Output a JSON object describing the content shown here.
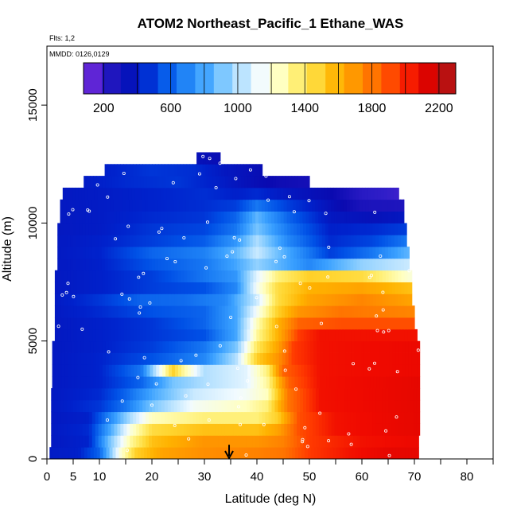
{
  "chart_data": {
    "type": "heatmap",
    "title": "ATOM2 Northeast_Pacific_1 Ethane_WAS",
    "annotations": {
      "flights": "Flts: 1,2",
      "dates": "MMDD: 0126,0129"
    },
    "xlabel": "Latitude (deg N)",
    "ylabel": "Altitude (m)",
    "xlim": [
      0,
      85
    ],
    "ylim": [
      0,
      17500
    ],
    "xticks": [
      0,
      5,
      10,
      20,
      30,
      40,
      50,
      60,
      70,
      80
    ],
    "yticks": [
      0,
      5000,
      10000,
      15000
    ],
    "colorbar": {
      "ticks": [
        200,
        600,
        1000,
        1400,
        1800,
        2200
      ],
      "range": [
        80,
        2300
      ],
      "colors": [
        "#8a2be2",
        "#2f1ec8",
        "#0a0ab0",
        "#0022cc",
        "#0050e6",
        "#1a7cf4",
        "#3aa0ff",
        "#76c4ff",
        "#b8e2ff",
        "#f2fbff",
        "#ffffc0",
        "#ffee70",
        "#ffd530",
        "#ffb200",
        "#ff9000",
        "#ff6a00",
        "#ff3a00",
        "#f00a00",
        "#cc0000",
        "#a82020"
      ]
    },
    "marker": {
      "x": 34.7,
      "label": "arrow"
    },
    "altitude_bands": [
      {
        "y0": 0,
        "y1": 500,
        "x0": 0.5,
        "x1": 70.8,
        "stops": [
          [
            0,
            400
          ],
          [
            6,
            420
          ],
          [
            10,
            600
          ],
          [
            14,
            1200
          ],
          [
            17,
            1500
          ],
          [
            22,
            1650
          ],
          [
            30,
            1720
          ],
          [
            40,
            1760
          ],
          [
            45,
            1800
          ],
          [
            50,
            1950
          ],
          [
            58,
            2050
          ],
          [
            65,
            2100
          ],
          [
            70.8,
            2100
          ]
        ]
      },
      {
        "y0": 500,
        "y1": 1000,
        "x0": 0.8,
        "x1": 70.8,
        "stops": [
          [
            0,
            380
          ],
          [
            8,
            430
          ],
          [
            12,
            900
          ],
          [
            16,
            1300
          ],
          [
            20,
            1550
          ],
          [
            30,
            1700
          ],
          [
            40,
            1700
          ],
          [
            45,
            1760
          ],
          [
            50,
            1950
          ],
          [
            60,
            2050
          ],
          [
            70.8,
            2080
          ]
        ]
      },
      {
        "y0": 1000,
        "y1": 1500,
        "x0": 0.8,
        "x1": 71,
        "stops": [
          [
            0,
            380
          ],
          [
            8,
            450
          ],
          [
            12,
            800
          ],
          [
            16,
            1200
          ],
          [
            20,
            1450
          ],
          [
            30,
            1550
          ],
          [
            40,
            1550
          ],
          [
            44,
            1650
          ],
          [
            48,
            1900
          ],
          [
            55,
            2050
          ],
          [
            71,
            2100
          ]
        ]
      },
      {
        "y0": 1500,
        "y1": 2000,
        "x0": 0.8,
        "x1": 71,
        "stops": [
          [
            0,
            380
          ],
          [
            8,
            420
          ],
          [
            12,
            700
          ],
          [
            16,
            1000
          ],
          [
            20,
            1250
          ],
          [
            30,
            1350
          ],
          [
            40,
            1350
          ],
          [
            44,
            1500
          ],
          [
            48,
            1900
          ],
          [
            55,
            2050
          ],
          [
            71,
            2100
          ]
        ]
      },
      {
        "y0": 2000,
        "y1": 2500,
        "x0": 0.8,
        "x1": 71,
        "stops": [
          [
            0,
            380
          ],
          [
            10,
            480
          ],
          [
            15,
            650
          ],
          [
            20,
            900
          ],
          [
            28,
            1150
          ],
          [
            38,
            1250
          ],
          [
            42,
            1350
          ],
          [
            46,
            1800
          ],
          [
            52,
            2050
          ],
          [
            71,
            2100
          ]
        ]
      },
      {
        "y0": 2500,
        "y1": 3000,
        "x0": 0.8,
        "x1": 71,
        "stops": [
          [
            0,
            380
          ],
          [
            10,
            450
          ],
          [
            15,
            600
          ],
          [
            20,
            800
          ],
          [
            28,
            1050
          ],
          [
            38,
            1150
          ],
          [
            42,
            1250
          ],
          [
            46,
            1800
          ],
          [
            52,
            2050
          ],
          [
            71,
            2100
          ]
        ]
      },
      {
        "y0": 3000,
        "y1": 3500,
        "x0": 1,
        "x1": 71,
        "stops": [
          [
            0,
            380
          ],
          [
            10,
            430
          ],
          [
            18,
            600
          ],
          [
            24,
            900
          ],
          [
            30,
            1000
          ],
          [
            38,
            1100
          ],
          [
            42,
            1300
          ],
          [
            46,
            1850
          ],
          [
            52,
            2050
          ],
          [
            71,
            2100
          ]
        ]
      },
      {
        "y0": 3500,
        "y1": 4000,
        "x0": 1,
        "x1": 71,
        "stops": [
          [
            0,
            380
          ],
          [
            10,
            430
          ],
          [
            18,
            650
          ],
          [
            22,
            1200
          ],
          [
            24,
            1500
          ],
          [
            26,
            1300
          ],
          [
            30,
            1000
          ],
          [
            38,
            1100
          ],
          [
            42,
            1350
          ],
          [
            45,
            1850
          ],
          [
            52,
            2050
          ],
          [
            71,
            2080
          ]
        ]
      },
      {
        "y0": 4000,
        "y1": 4500,
        "x0": 1,
        "x1": 71,
        "stops": [
          [
            0,
            380
          ],
          [
            10,
            430
          ],
          [
            20,
            550
          ],
          [
            30,
            700
          ],
          [
            36,
            1000
          ],
          [
            40,
            1500
          ],
          [
            44,
            1700
          ],
          [
            47,
            1950
          ],
          [
            52,
            2050
          ],
          [
            71,
            2080
          ]
        ]
      },
      {
        "y0": 4500,
        "y1": 5000,
        "x0": 1,
        "x1": 71,
        "stops": [
          [
            0,
            380
          ],
          [
            10,
            420
          ],
          [
            20,
            500
          ],
          [
            30,
            650
          ],
          [
            36,
            900
          ],
          [
            40,
            1400
          ],
          [
            44,
            1650
          ],
          [
            47,
            1950
          ],
          [
            52,
            2050
          ],
          [
            71,
            2080
          ]
        ]
      },
      {
        "y0": 5000,
        "y1": 5500,
        "x0": 1.5,
        "x1": 70.5,
        "stops": [
          [
            0,
            380
          ],
          [
            10,
            420
          ],
          [
            20,
            480
          ],
          [
            30,
            550
          ],
          [
            36,
            800
          ],
          [
            40,
            1300
          ],
          [
            44,
            1600
          ],
          [
            48,
            1950
          ],
          [
            52,
            2050
          ],
          [
            70.5,
            2050
          ]
        ]
      },
      {
        "y0": 5500,
        "y1": 6000,
        "x0": 1.5,
        "x1": 70,
        "stops": [
          [
            0,
            380
          ],
          [
            10,
            420
          ],
          [
            20,
            480
          ],
          [
            30,
            600
          ],
          [
            36,
            800
          ],
          [
            40,
            1250
          ],
          [
            44,
            1600
          ],
          [
            48,
            1850
          ],
          [
            56,
            1900
          ],
          [
            70,
            1900
          ]
        ]
      },
      {
        "y0": 6000,
        "y1": 6500,
        "x0": 1.5,
        "x1": 70,
        "stops": [
          [
            0,
            380
          ],
          [
            10,
            450
          ],
          [
            20,
            550
          ],
          [
            30,
            600
          ],
          [
            36,
            800
          ],
          [
            40,
            1150
          ],
          [
            44,
            1500
          ],
          [
            48,
            1700
          ],
          [
            56,
            1800
          ],
          [
            70,
            1750
          ]
        ]
      },
      {
        "y0": 6500,
        "y1": 7000,
        "x0": 1.5,
        "x1": 69.5,
        "stops": [
          [
            0,
            380
          ],
          [
            10,
            480
          ],
          [
            18,
            600
          ],
          [
            26,
            620
          ],
          [
            34,
            700
          ],
          [
            40,
            1050
          ],
          [
            44,
            1450
          ],
          [
            50,
            1650
          ],
          [
            60,
            1750
          ],
          [
            69.5,
            1650
          ]
        ]
      },
      {
        "y0": 7000,
        "y1": 7500,
        "x0": 1.5,
        "x1": 69.5,
        "stops": [
          [
            0,
            380
          ],
          [
            10,
            420
          ],
          [
            20,
            500
          ],
          [
            30,
            550
          ],
          [
            36,
            700
          ],
          [
            40,
            1150
          ],
          [
            44,
            1450
          ],
          [
            50,
            1600
          ],
          [
            60,
            1650
          ],
          [
            69.5,
            1550
          ]
        ]
      },
      {
        "y0": 7500,
        "y1": 8000,
        "x0": 1.5,
        "x1": 69.5,
        "stops": [
          [
            0,
            380
          ],
          [
            10,
            420
          ],
          [
            20,
            500
          ],
          [
            30,
            650
          ],
          [
            36,
            750
          ],
          [
            40,
            1100
          ],
          [
            44,
            1350
          ],
          [
            50,
            1500
          ],
          [
            60,
            1450
          ],
          [
            69.5,
            1200
          ]
        ]
      },
      {
        "y0": 8000,
        "y1": 8500,
        "x0": 2,
        "x1": 69,
        "stops": [
          [
            0,
            380
          ],
          [
            10,
            420
          ],
          [
            20,
            560
          ],
          [
            30,
            650
          ],
          [
            36,
            800
          ],
          [
            40,
            950
          ],
          [
            46,
            800
          ],
          [
            50,
            700
          ],
          [
            60,
            950
          ],
          [
            69,
            1050
          ]
        ]
      },
      {
        "y0": 8500,
        "y1": 9000,
        "x0": 2,
        "x1": 69,
        "stops": [
          [
            0,
            380
          ],
          [
            10,
            430
          ],
          [
            20,
            600
          ],
          [
            30,
            680
          ],
          [
            36,
            850
          ],
          [
            40,
            1050
          ],
          [
            46,
            800
          ],
          [
            54,
            500
          ],
          [
            62,
            650
          ],
          [
            69,
            850
          ]
        ]
      },
      {
        "y0": 9000,
        "y1": 9500,
        "x0": 2,
        "x1": 68.5,
        "stops": [
          [
            0,
            380
          ],
          [
            10,
            420
          ],
          [
            20,
            500
          ],
          [
            30,
            580
          ],
          [
            36,
            750
          ],
          [
            40,
            1000
          ],
          [
            46,
            700
          ],
          [
            54,
            450
          ],
          [
            62,
            520
          ],
          [
            68.5,
            650
          ]
        ]
      },
      {
        "y0": 9500,
        "y1": 10000,
        "x0": 2,
        "x1": 68.5,
        "stops": [
          [
            0,
            380
          ],
          [
            10,
            400
          ],
          [
            20,
            480
          ],
          [
            30,
            520
          ],
          [
            36,
            650
          ],
          [
            40,
            900
          ],
          [
            46,
            650
          ],
          [
            54,
            420
          ],
          [
            62,
            450
          ],
          [
            68.5,
            500
          ]
        ]
      },
      {
        "y0": 10000,
        "y1": 10500,
        "x0": 2.5,
        "x1": 68,
        "stops": [
          [
            0,
            380
          ],
          [
            10,
            400
          ],
          [
            20,
            450
          ],
          [
            30,
            480
          ],
          [
            36,
            600
          ],
          [
            40,
            850
          ],
          [
            46,
            600
          ],
          [
            54,
            380
          ],
          [
            62,
            350
          ],
          [
            68,
            380
          ]
        ]
      },
      {
        "y0": 10500,
        "y1": 11000,
        "x0": 2.5,
        "x1": 68,
        "stops": [
          [
            0,
            380
          ],
          [
            10,
            400
          ],
          [
            20,
            430
          ],
          [
            30,
            460
          ],
          [
            36,
            500
          ],
          [
            40,
            650
          ],
          [
            46,
            500
          ],
          [
            54,
            350
          ],
          [
            60,
            260
          ],
          [
            68,
            250
          ]
        ]
      },
      {
        "y0": 11000,
        "y1": 11500,
        "x0": 3,
        "x1": 67,
        "stops": [
          [
            0,
            380
          ],
          [
            10,
            400
          ],
          [
            20,
            430
          ],
          [
            30,
            460
          ],
          [
            36,
            420
          ],
          [
            40,
            450
          ],
          [
            46,
            380
          ],
          [
            54,
            320
          ],
          [
            60,
            220
          ],
          [
            67,
            180
          ]
        ]
      },
      {
        "y0": 11500,
        "y1": 12000,
        "x0": 7,
        "x1": 50,
        "stops": [
          [
            7,
            400
          ],
          [
            15,
            450
          ],
          [
            25,
            480
          ],
          [
            32,
            420
          ],
          [
            38,
            350
          ],
          [
            44,
            300
          ],
          [
            50,
            280
          ]
        ]
      },
      {
        "y0": 12000,
        "y1": 12500,
        "x0": 11,
        "x1": 41,
        "stops": [
          [
            11,
            420
          ],
          [
            20,
            480
          ],
          [
            28,
            460
          ],
          [
            34,
            380
          ],
          [
            41,
            330
          ]
        ]
      },
      {
        "y0": 12500,
        "y1": 13000,
        "x0": 28.5,
        "x1": 33,
        "stops": [
          [
            28.5,
            350
          ],
          [
            33,
            330
          ]
        ]
      }
    ]
  }
}
